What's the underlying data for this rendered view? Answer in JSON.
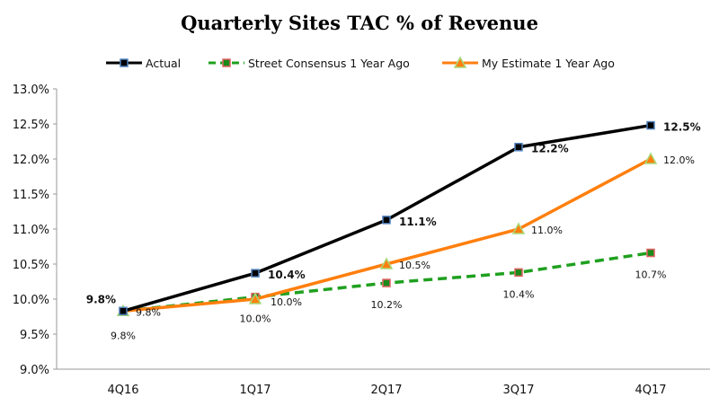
{
  "chart_data": {
    "type": "line",
    "title": "Quarterly Sites TAC % of Revenue",
    "xlabel": "",
    "ylabel": "",
    "categories": [
      "4Q16",
      "1Q17",
      "2Q17",
      "3Q17",
      "4Q17"
    ],
    "ylim": [
      9.0,
      13.0
    ],
    "yticks": [
      9.0,
      9.5,
      10.0,
      10.5,
      11.0,
      11.5,
      12.0,
      12.5,
      13.0
    ],
    "ytick_labels": [
      "9.0%",
      "9.5%",
      "10.0%",
      "10.5%",
      "11.0%",
      "11.5%",
      "12.0%",
      "12.5%",
      "13.0%"
    ],
    "grid": false,
    "legend_position": "top",
    "series": [
      {
        "name": "Actual",
        "color": "#000000",
        "marker_fill": "#000000",
        "marker_edge": "#4f81bd",
        "marker": "square",
        "dash": false,
        "bold_labels": true,
        "values": [
          9.83,
          10.37,
          11.13,
          12.17,
          12.48
        ],
        "labels": [
          "9.8%",
          "10.4%",
          "11.1%",
          "12.2%",
          "12.5%"
        ]
      },
      {
        "name": "Street Consensus 1 Year Ago",
        "color": "#1fa01f",
        "marker_fill": "#1a8a1a",
        "marker_edge": "#e06060",
        "marker": "square",
        "dash": true,
        "bold_labels": false,
        "values": [
          9.83,
          10.03,
          10.23,
          10.38,
          10.66
        ],
        "labels": [
          "9.8%",
          "10.0%",
          "10.2%",
          "10.4%",
          "10.7%"
        ]
      },
      {
        "name": "My Estimate 1 Year Ago",
        "color": "#ff7f0e",
        "marker_fill": "#ff7f0e",
        "marker_edge": "#a8d878",
        "marker": "triangle",
        "dash": false,
        "bold_labels": false,
        "values": [
          9.83,
          10.0,
          10.5,
          11.0,
          12.0
        ],
        "labels": [
          "9.8%",
          "10.0%",
          "10.5%",
          "11.0%",
          "12.0%"
        ]
      }
    ]
  }
}
